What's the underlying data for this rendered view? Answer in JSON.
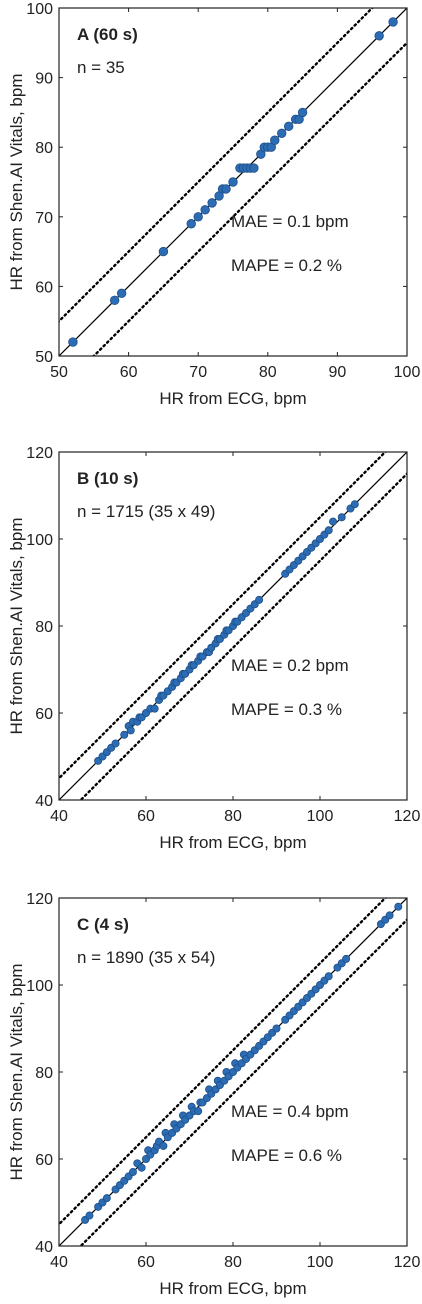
{
  "colors": {
    "point": "#2b6cb4",
    "point_edge": "#1f4f86",
    "axis": "#222222",
    "line": "#000000"
  },
  "chart_data": [
    {
      "type": "scatter",
      "title": "A (60 s)",
      "annotations": [
        "n = 35",
        "MAE = 0.1 bpm",
        "MAPE = 0.2 %"
      ],
      "xlabel": "HR from ECG, bpm",
      "ylabel": "HR from Shen.AI Vitals, bpm",
      "xlim": [
        50,
        100
      ],
      "ylim": [
        50,
        100
      ],
      "xticks": [
        "50",
        "60",
        "70",
        "80",
        "90",
        "100"
      ],
      "yticks": [
        "50",
        "60",
        "70",
        "80",
        "90",
        "100"
      ],
      "identity_line": true,
      "band_offset": 5,
      "grid": false,
      "series": [
        {
          "x": [
            52,
            58,
            59,
            65,
            69,
            70,
            71,
            72,
            73,
            73.5,
            74,
            75,
            76,
            76.5,
            77,
            77.5,
            78,
            79,
            79.5,
            80,
            80.5,
            81,
            82,
            83,
            84,
            84.5,
            85,
            96,
            98
          ],
          "y": [
            52,
            58,
            59,
            65,
            69,
            70,
            71,
            72,
            73,
            74,
            74,
            75,
            77,
            77,
            77,
            77,
            77,
            79,
            80,
            80,
            80,
            81,
            82,
            83,
            84,
            84,
            85,
            96,
            98
          ]
        }
      ]
    },
    {
      "type": "scatter",
      "title": "B (10 s)",
      "annotations": [
        "n = 1715 (35 x 49)",
        "MAE = 0.2 bpm",
        "MAPE = 0.3 %"
      ],
      "xlabel": "HR from ECG, bpm",
      "ylabel": "HR from Shen.AI Vitals, bpm",
      "xlim": [
        40,
        120
      ],
      "ylim": [
        40,
        120
      ],
      "xticks": [
        "40",
        "60",
        "80",
        "100",
        "120"
      ],
      "yticks": [
        "40",
        "60",
        "80",
        "100",
        "120"
      ],
      "identity_line": true,
      "band_offset": 5,
      "grid": false,
      "series": [
        {
          "x": [
            49,
            50,
            51,
            52,
            53,
            55,
            56,
            56.5,
            57,
            58,
            58.5,
            59,
            60,
            61,
            62,
            63,
            63.5,
            64,
            65,
            66,
            66.5,
            67,
            68,
            68.5,
            69,
            70,
            70.5,
            71,
            72,
            72.5,
            73,
            74,
            74.5,
            75,
            76,
            76.5,
            77,
            78,
            78.5,
            79,
            80,
            80.5,
            81,
            82,
            83,
            84,
            85,
            86,
            92,
            93,
            94,
            95,
            96,
            97,
            98,
            99,
            100,
            101,
            102,
            103,
            105,
            107,
            108
          ],
          "y": [
            49,
            50,
            51,
            52,
            53,
            55,
            57,
            56,
            58,
            58,
            59,
            59,
            60,
            61,
            61,
            63,
            64,
            64,
            65,
            66,
            67,
            67,
            68,
            69,
            69,
            70,
            71,
            71,
            72,
            73,
            73,
            74,
            74,
            75,
            76,
            77,
            77,
            78,
            79,
            79,
            80,
            81,
            81,
            82,
            83,
            84,
            85,
            86,
            92,
            93,
            94,
            95,
            96,
            97,
            98,
            99,
            100,
            101,
            102,
            104,
            105,
            107,
            108
          ]
        }
      ]
    },
    {
      "type": "scatter",
      "title": "C (4 s)",
      "annotations": [
        "n = 1890 (35 x 54)",
        "MAE = 0.4 bpm",
        "MAPE = 0.6 %"
      ],
      "xlabel": "HR from ECG, bpm",
      "ylabel": "HR from Shen.AI Vitals, bpm",
      "xlim": [
        40,
        120
      ],
      "ylim": [
        40,
        120
      ],
      "xticks": [
        "40",
        "60",
        "80",
        "100",
        "120"
      ],
      "yticks": [
        "40",
        "60",
        "80",
        "100",
        "120"
      ],
      "identity_line": true,
      "band_offset": 5,
      "grid": false,
      "series": [
        {
          "x": [
            46,
            47,
            49,
            50,
            51,
            53,
            54,
            55,
            56,
            57,
            58,
            59,
            60,
            60.5,
            61,
            62,
            62.5,
            63,
            64,
            64.5,
            65,
            66,
            66.5,
            67,
            68,
            68.5,
            69,
            70,
            70.5,
            71,
            72,
            72.5,
            73,
            74,
            74.5,
            75,
            76,
            76.5,
            77,
            78,
            78.5,
            79,
            80,
            80.5,
            81,
            82,
            82.5,
            83,
            84,
            85,
            86,
            87,
            88,
            89,
            90,
            92,
            93,
            94,
            95,
            96,
            97,
            98,
            99,
            100,
            101,
            102,
            104,
            105,
            106,
            114,
            115,
            116,
            118
          ],
          "y": [
            46,
            47,
            49,
            50,
            51,
            53,
            54,
            55,
            56,
            57,
            59,
            58,
            60,
            62,
            61,
            62,
            63,
            64,
            63,
            66,
            65,
            66,
            68,
            67,
            68,
            70,
            69,
            70,
            72,
            71,
            71,
            73,
            73,
            74,
            76,
            75,
            76,
            78,
            77,
            78,
            80,
            79,
            80,
            82,
            81,
            82,
            84,
            83,
            84,
            85,
            86,
            87,
            88,
            89,
            90,
            92,
            93,
            94,
            95,
            96,
            97,
            98,
            99,
            100,
            101,
            102,
            104,
            105,
            106,
            114,
            115,
            116,
            118
          ]
        }
      ]
    }
  ]
}
